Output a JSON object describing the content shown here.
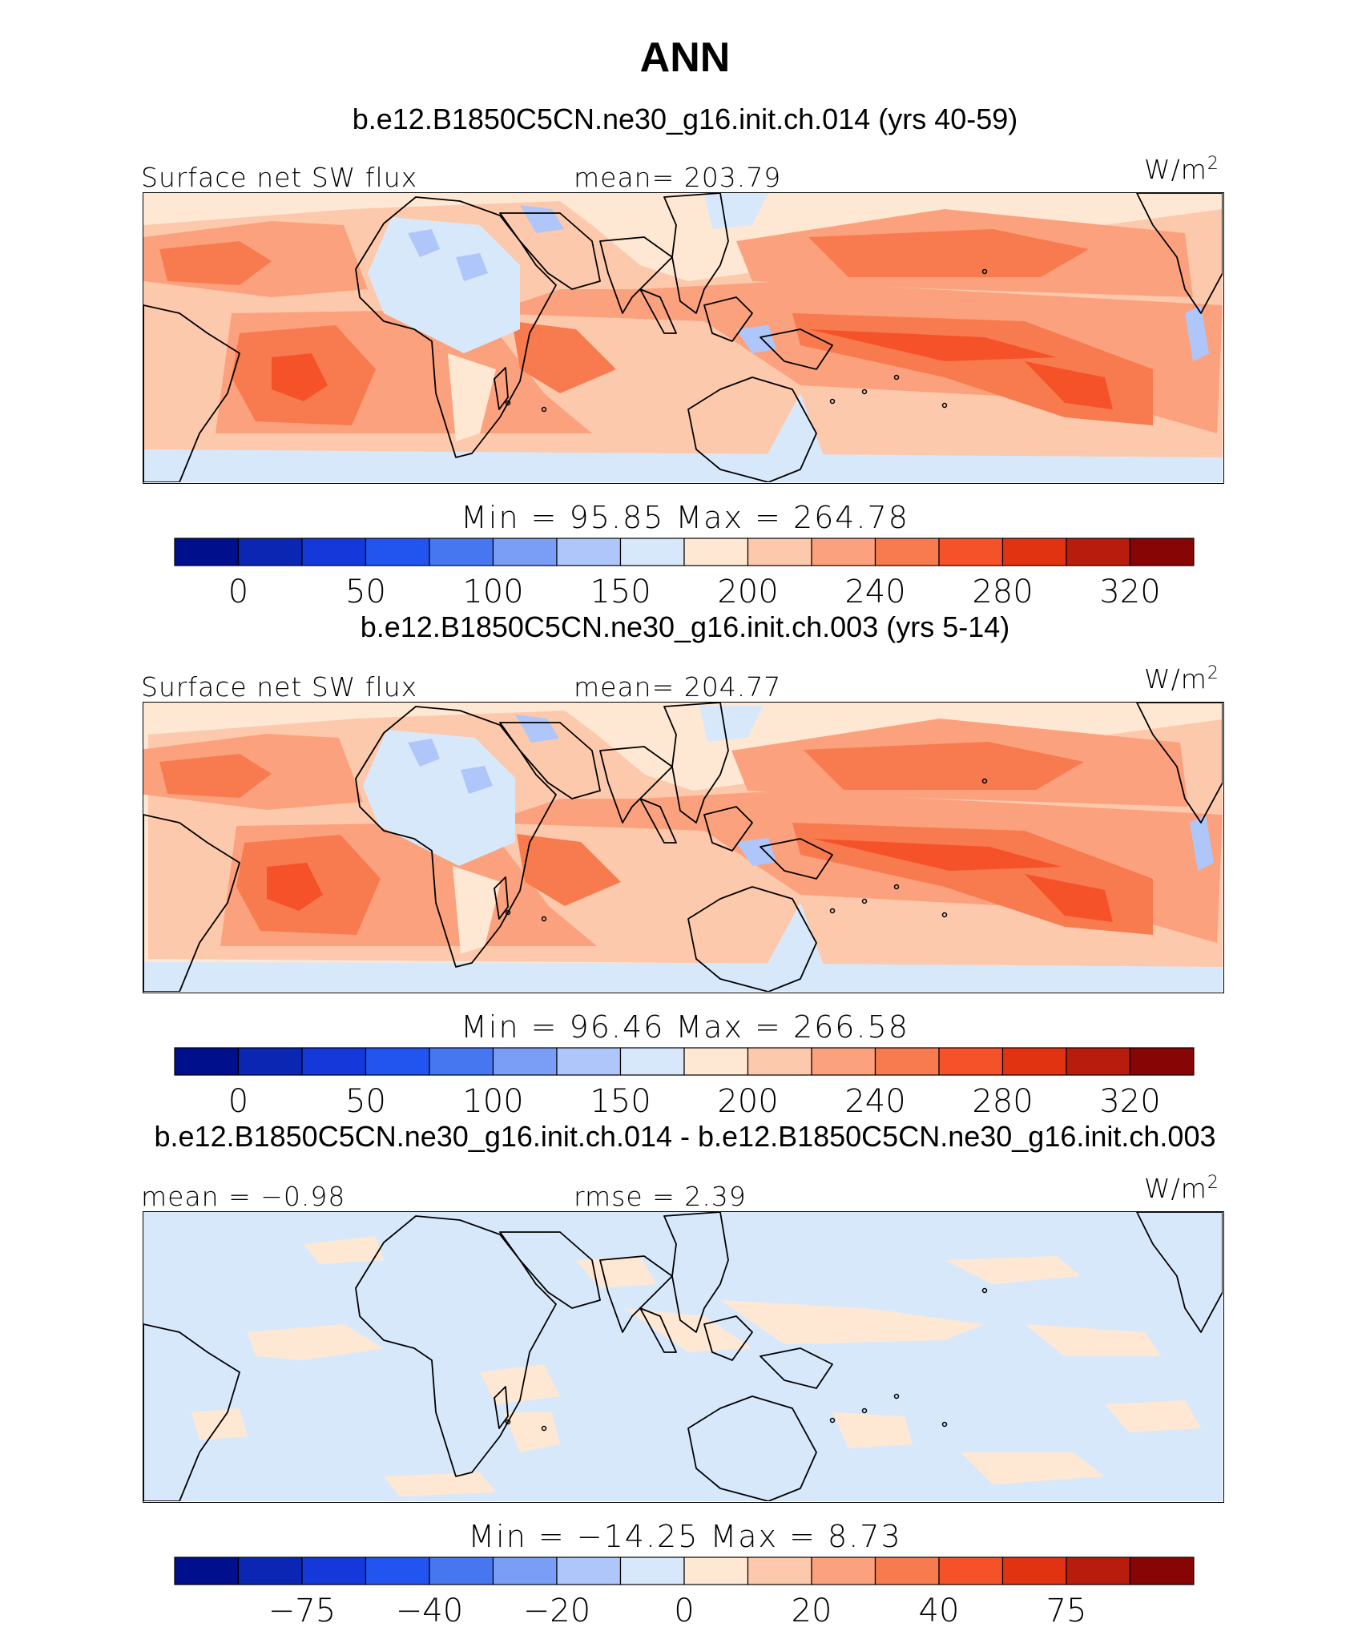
{
  "page_title": "ANN",
  "colors": [
    "#000f8c",
    "#0a26b3",
    "#1438d9",
    "#2255f0",
    "#4677f0",
    "#7a9ef5",
    "#aec6fa",
    "#d8e8fb",
    "#fee8d3",
    "#fdc9ac",
    "#fca17d",
    "#f77b4e",
    "#f6522a",
    "#e13312",
    "#b81c0c",
    "#880505"
  ],
  "chart_data": [
    {
      "type": "heatmap",
      "title": "b.e12.B1850C5CN.ne30_g16.init.ch.014 (yrs 40-59)",
      "variable_label": "Surface net SW flux",
      "stat_label": "mean= 203.79",
      "units": "W/m",
      "units_sup": "2",
      "minmax_label": "Min  =   95.85  Max  =  264.78",
      "min": 95.85,
      "max": 264.78,
      "mean": 203.79,
      "colorbar_ticks": [
        "0",
        "50",
        "100",
        "150",
        "200",
        "240",
        "280",
        "320"
      ]
    },
    {
      "type": "heatmap",
      "title": "b.e12.B1850C5CN.ne30_g16.init.ch.003 (yrs 5-14)",
      "variable_label": "Surface net SW flux",
      "stat_label": "mean= 204.77",
      "units": "W/m",
      "units_sup": "2",
      "minmax_label": "Min  =   96.46  Max  =  266.58",
      "min": 96.46,
      "max": 266.58,
      "mean": 204.77,
      "colorbar_ticks": [
        "0",
        "50",
        "100",
        "150",
        "200",
        "240",
        "280",
        "320"
      ]
    },
    {
      "type": "heatmap",
      "title": "b.e12.B1850C5CN.ne30_g16.init.ch.014 - b.e12.B1850C5CN.ne30_g16.init.ch.003",
      "variable_label": "mean =   −0.98",
      "stat_label": "rmse =     2.39",
      "units": "W/m",
      "units_sup": "2",
      "minmax_label": "Min  = −14.25  Max  =     8.73",
      "min": -14.25,
      "max": 8.73,
      "mean": -0.98,
      "rmse": 2.39,
      "colorbar_ticks": [
        "−75",
        "−40",
        "−20",
        "0",
        "20",
        "40",
        "75"
      ]
    }
  ]
}
